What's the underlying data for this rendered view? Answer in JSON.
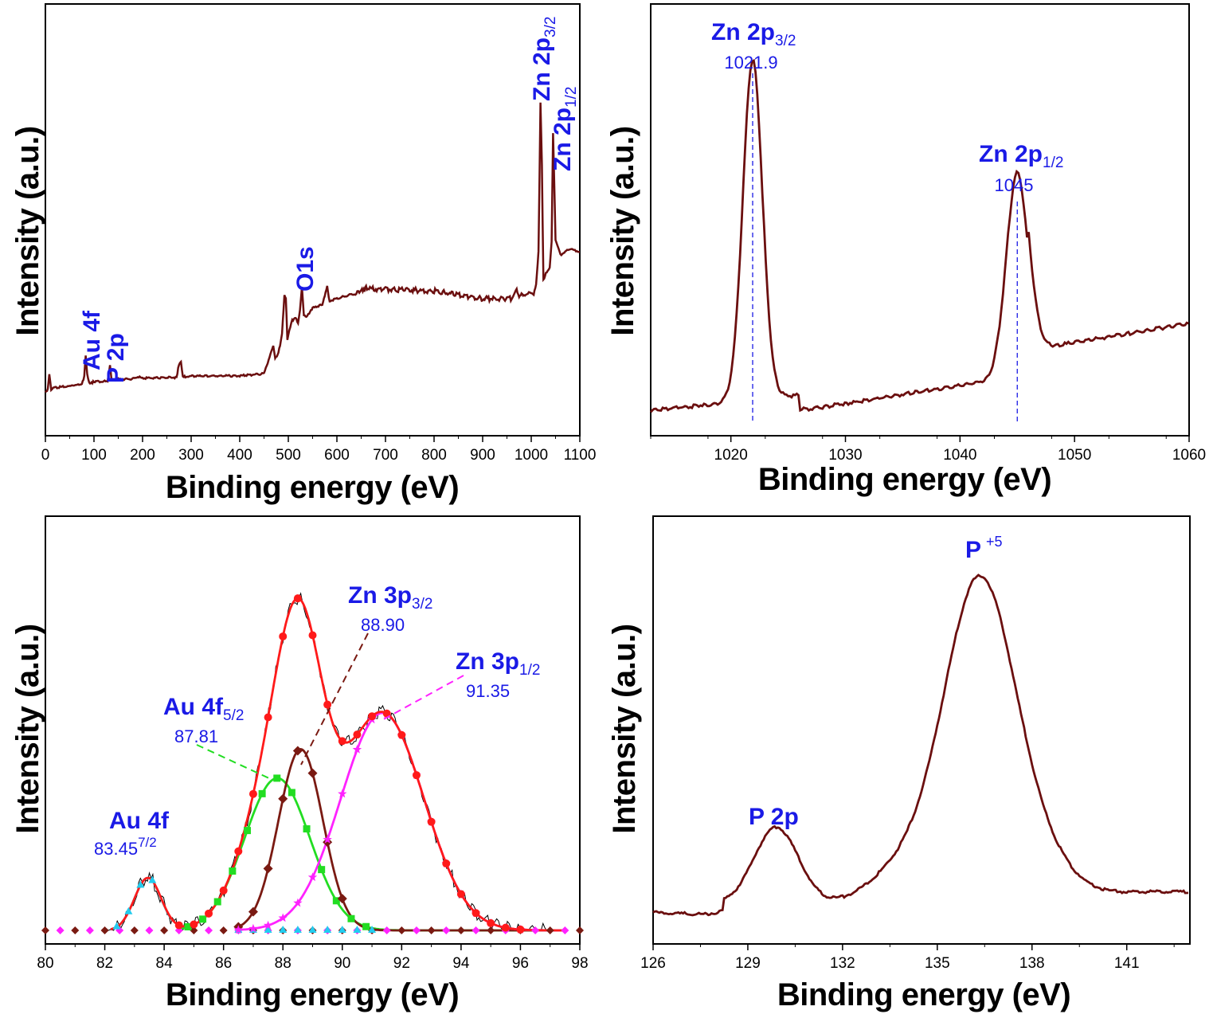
{
  "colors": {
    "curve": "#6b0f0f",
    "label": "#1a1ae6",
    "fit_total": "#ff1a1a",
    "au_green": "#22dd22",
    "zn_brown": "#7a1a12",
    "zn_magenta": "#ff22ff",
    "au_cyan": "#22ccee",
    "measured": "#000000"
  },
  "chart_data": [
    {
      "id": "survey",
      "type": "line",
      "xlabel": "Binding energy (eV)",
      "ylabel": "Intensity (a.u.)",
      "xlim": [
        0,
        1100
      ],
      "ylim": [
        0,
        100
      ],
      "xticks": [
        0,
        100,
        200,
        300,
        400,
        500,
        600,
        700,
        800,
        900,
        1000,
        1100
      ],
      "x": [
        0,
        5,
        8,
        12,
        20,
        50,
        75,
        80,
        83,
        86,
        90,
        95,
        100,
        128,
        133,
        136,
        140,
        150,
        180,
        190,
        200,
        270,
        275,
        279,
        283,
        290,
        300,
        400,
        450,
        465,
        469,
        473,
        478,
        483,
        487,
        492,
        495,
        498,
        502,
        508,
        515,
        520,
        524,
        528,
        532,
        537,
        545,
        550,
        560,
        570,
        575,
        580,
        585,
        590,
        600,
        620,
        640,
        650,
        655,
        660,
        680,
        700,
        800,
        900,
        960,
        970,
        975,
        980,
        985,
        995,
        1005,
        1010,
        1015,
        1019,
        1022,
        1025,
        1030,
        1038,
        1042,
        1045,
        1050,
        1060,
        1080,
        1100
      ],
      "y": [
        7,
        8,
        13,
        8,
        8.5,
        9,
        9.5,
        12,
        19,
        13,
        10,
        10,
        10.5,
        10.5,
        16,
        11,
        11,
        11.2,
        11.3,
        12,
        11.5,
        11.8,
        16,
        17,
        12,
        12,
        12.2,
        12.3,
        13,
        20,
        22,
        18,
        19,
        22,
        26,
        38,
        37,
        24,
        27,
        30,
        31,
        29,
        33,
        41,
        32,
        31,
        33,
        34,
        34.5,
        35,
        38,
        41,
        36,
        36.5,
        37,
        38,
        38.5,
        40,
        39.5,
        40.5,
        40,
        40,
        39.5,
        37,
        37,
        40,
        37.5,
        38.5,
        38,
        39,
        38.5,
        41.5,
        52,
        100,
        80,
        43,
        45,
        47,
        55,
        90,
        56,
        51,
        53,
        52
      ],
      "annotations": [
        {
          "text": "Au 4f",
          "x": 85
        },
        {
          "text": "P 2p",
          "x": 133
        },
        {
          "text": "O1s",
          "x": 531
        },
        {
          "text": "Zn 2p",
          "sub": "3/2",
          "x": 1021.9
        },
        {
          "text": "Zn 2p",
          "sub": "1/2",
          "x": 1045
        }
      ]
    },
    {
      "id": "zn2p",
      "type": "line",
      "xlabel": "Binding energy (eV)",
      "ylabel": "Intensity (a.u.)",
      "xlim": [
        1013,
        1060
      ],
      "ylim": [
        0,
        100
      ],
      "xticks": [
        1020,
        1030,
        1040,
        1050,
        1060
      ],
      "peaks": [
        {
          "label": "Zn 2p",
          "sub": "3/2",
          "value": "1021.9",
          "x": 1021.9
        },
        {
          "label": "Zn 2p",
          "sub": "1/2",
          "value": "1045",
          "x": 1045
        }
      ]
    },
    {
      "id": "zn3p_au4f",
      "type": "line",
      "xlabel": "Binding energy (eV)",
      "ylabel": "Intensity (a.u.)",
      "xlim": [
        80,
        98
      ],
      "ylim": [
        0,
        100
      ],
      "xticks": [
        80,
        82,
        84,
        86,
        88,
        90,
        92,
        94,
        96,
        98
      ],
      "components": [
        {
          "name": "Au 4f",
          "sub": "7/2",
          "value": "83.45",
          "center": 83.45
        },
        {
          "name": "Au 4f",
          "sub": "5/2",
          "value": "87.81",
          "center": 87.81
        },
        {
          "name": "Zn 3p",
          "sub": "3/2",
          "value": "88.90",
          "center": 88.9
        },
        {
          "name": "Zn 3p",
          "sub": "1/2",
          "value": "91.35",
          "center": 91.35
        }
      ]
    },
    {
      "id": "p2p",
      "type": "line",
      "xlabel": "Binding energy (eV)",
      "ylabel": "Intensity (a.u.)",
      "xlim": [
        126,
        143
      ],
      "ylim": [
        0,
        100
      ],
      "xticks": [
        126,
        129,
        132,
        135,
        138,
        141
      ],
      "peaks": [
        {
          "label": "P 2p",
          "x": 129.8
        },
        {
          "label": "P",
          "sup": "+5",
          "x": 136.3
        }
      ]
    }
  ]
}
